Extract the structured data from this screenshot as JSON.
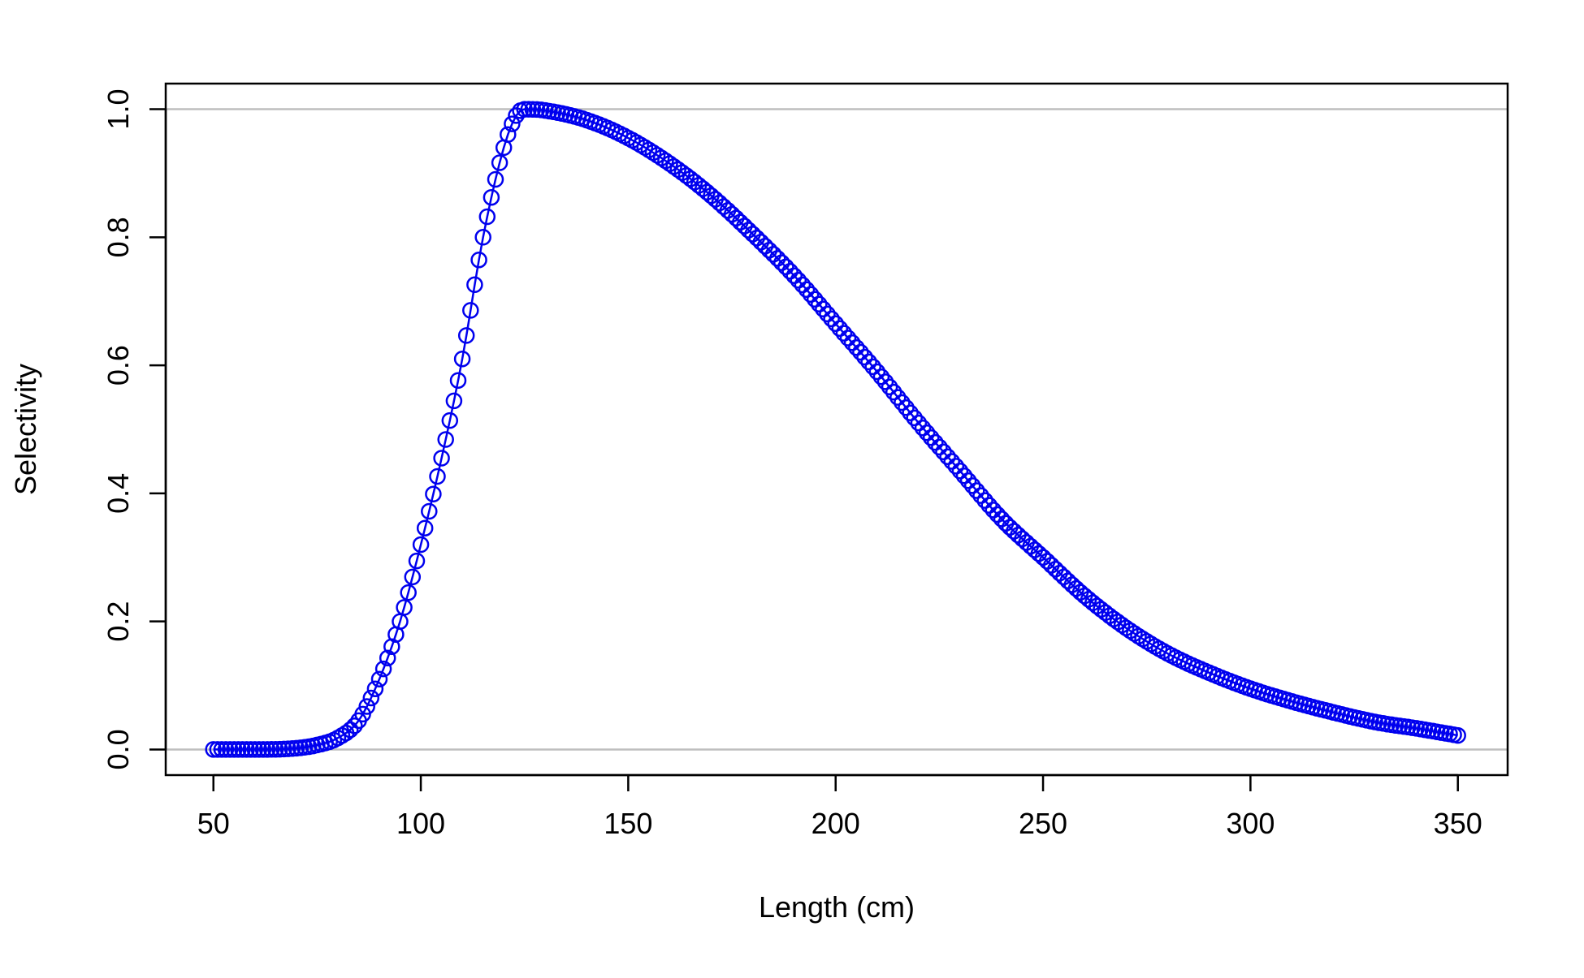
{
  "chart_data": {
    "type": "scatter",
    "title": "",
    "xlabel": "Length (cm)",
    "ylabel": "Selectivity",
    "xlim": [
      38.5,
      362
    ],
    "ylim": [
      -0.04,
      1.04
    ],
    "x_ticks": [
      "50",
      "100",
      "150",
      "200",
      "250",
      "300",
      "350"
    ],
    "x_tick_values": [
      50,
      100,
      150,
      200,
      250,
      300,
      350
    ],
    "y_ticks": [
      "0.0",
      "0.2",
      "0.4",
      "0.6",
      "0.8",
      "1.0"
    ],
    "y_tick_values": [
      0,
      0.2,
      0.4,
      0.6,
      0.8,
      1.0
    ],
    "reference_lines_y": [
      0,
      1
    ],
    "grid": false,
    "legend": "none",
    "point_style": "open-circle-with-line",
    "colors": {
      "series": "#0000ee",
      "reference_line": "#bebebe",
      "axes": "#000000"
    },
    "series": [
      {
        "x": [
          50,
          60,
          70,
          75,
          80,
          85,
          90,
          95,
          100,
          105,
          110,
          115,
          120,
          123,
          125,
          126,
          130,
          140,
          150,
          160,
          170,
          180,
          190,
          200,
          210,
          220,
          230,
          240,
          250,
          260,
          270,
          280,
          290,
          300,
          310,
          320,
          330,
          340,
          350
        ],
        "values": [
          0.0,
          0.0,
          0.002,
          0.007,
          0.018,
          0.045,
          0.11,
          0.2,
          0.32,
          0.455,
          0.61,
          0.8,
          0.94,
          0.99,
          1.0,
          1.0,
          0.998,
          0.983,
          0.955,
          0.915,
          0.865,
          0.805,
          0.74,
          0.665,
          0.59,
          0.51,
          0.435,
          0.36,
          0.3,
          0.24,
          0.19,
          0.15,
          0.12,
          0.095,
          0.075,
          0.058,
          0.043,
          0.033,
          0.022
        ]
      }
    ]
  }
}
